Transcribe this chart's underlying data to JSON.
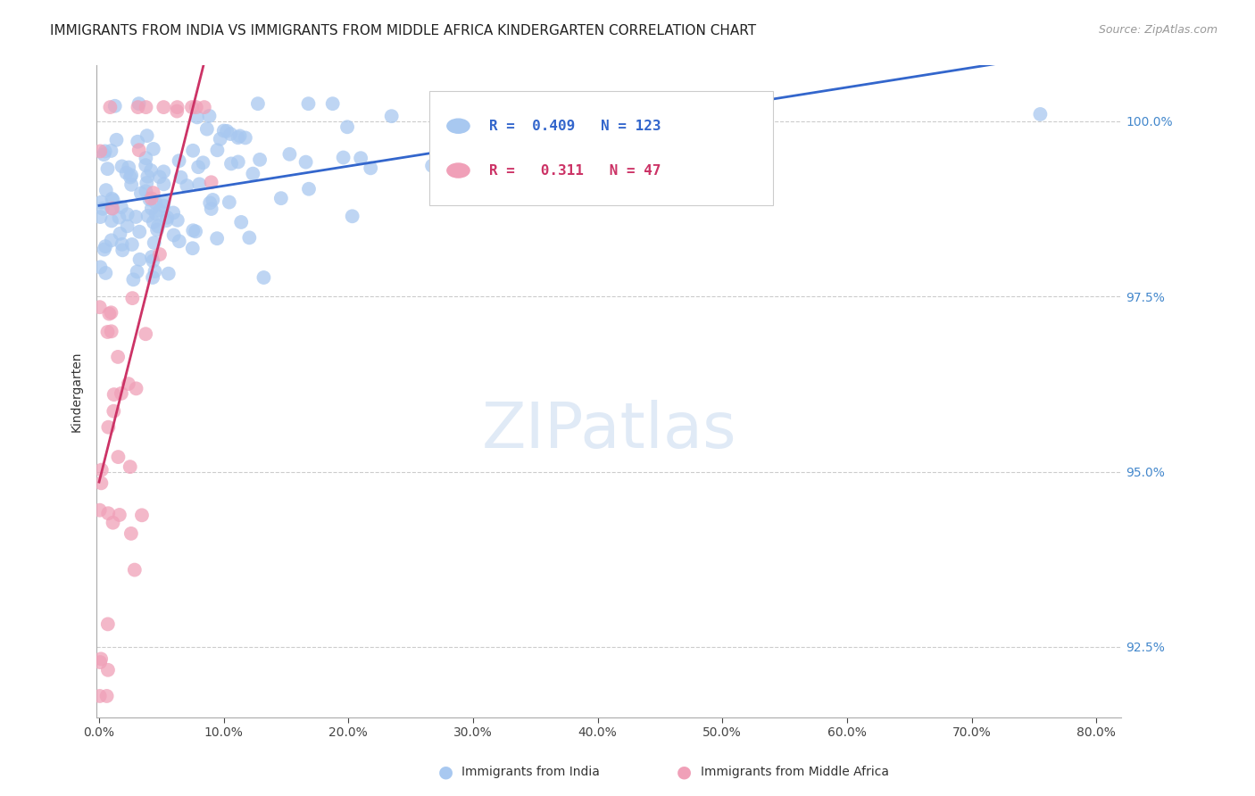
{
  "title": "IMMIGRANTS FROM INDIA VS IMMIGRANTS FROM MIDDLE AFRICA KINDERGARTEN CORRELATION CHART",
  "source": "Source: ZipAtlas.com",
  "ylabel": "Kindergarten",
  "y_min": 91.5,
  "y_max": 100.8,
  "x_min": -0.002,
  "x_max": 0.82,
  "y_ticks": [
    92.5,
    95.0,
    97.5,
    100.0
  ],
  "legend_india_r": "0.409",
  "legend_india_n": "123",
  "legend_africa_r": "0.311",
  "legend_africa_n": "47",
  "india_color": "#a8c8f0",
  "india_line_color": "#3366cc",
  "africa_color": "#f0a0b8",
  "africa_line_color": "#cc3366",
  "background_color": "#ffffff",
  "grid_color": "#cccccc",
  "axis_color": "#aaaaaa",
  "right_tick_color": "#4488cc",
  "title_fontsize": 11,
  "label_fontsize": 10,
  "tick_fontsize": 10
}
